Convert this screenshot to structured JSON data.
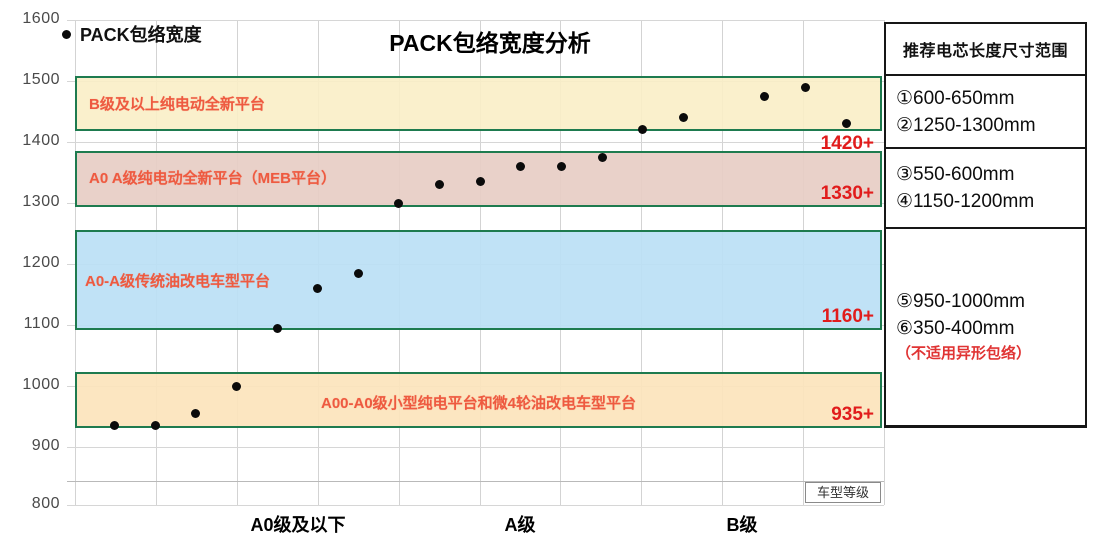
{
  "title": "PACK包络宽度分析",
  "legend": {
    "label": "PACK包络宽度"
  },
  "y_axis": {
    "ticks": [
      1600,
      1500,
      1400,
      1300,
      1200,
      1100,
      1000,
      900,
      800
    ]
  },
  "x_axis": {
    "categories": [
      "A0级及以下",
      "A级",
      "B级"
    ],
    "title": "车型等级"
  },
  "chart_data": {
    "type": "scatter",
    "series_name": "PACK包络宽度",
    "title": "PACK包络宽度分析",
    "xlabel": "车型等级",
    "ylabel": "PACK包络宽度",
    "ylim": [
      800,
      1600
    ],
    "grid": true,
    "legend_position": "top-left",
    "bands": [
      {
        "id": "b-class",
        "label": "B级及以上纯电动全新平台",
        "range": [
          1418,
          1508
        ],
        "min_label": "1420+",
        "min_label_outside": true,
        "fill": "rgba(250,238,198,0.9)"
      },
      {
        "id": "a0a-meb",
        "label": "A0 A级纯电动全新平台（MEB平台）",
        "range": [
          1293,
          1385
        ],
        "min_label": "1330+",
        "min_label_outside": false,
        "fill": "rgba(231,205,196,0.92)"
      },
      {
        "id": "a0a-retrofit",
        "label": "A0-A级传统油改电车型平台",
        "range": [
          1092,
          1256
        ],
        "min_label": "1160+",
        "min_label_outside": false,
        "fill": "rgba(187,224,245,0.92)"
      },
      {
        "id": "a00-small",
        "label": "A00-A0级小型纯电平台和微4轮油改电车型平台",
        "range": [
          931,
          1023
        ],
        "min_label": "935+",
        "min_label_outside": false,
        "fill": "rgba(252,228,188,0.92)"
      }
    ],
    "points": [
      {
        "slot": 0,
        "value": 935
      },
      {
        "slot": 1,
        "value": 935
      },
      {
        "slot": 2,
        "value": 955
      },
      {
        "slot": 3,
        "value": 1000
      },
      {
        "slot": 4,
        "value": 1095
      },
      {
        "slot": 5,
        "value": 1160
      },
      {
        "slot": 6,
        "value": 1185
      },
      {
        "slot": 7,
        "value": 1300
      },
      {
        "slot": 8,
        "value": 1330
      },
      {
        "slot": 9,
        "value": 1335
      },
      {
        "slot": 10,
        "value": 1360
      },
      {
        "slot": 11,
        "value": 1360
      },
      {
        "slot": 12,
        "value": 1375
      },
      {
        "slot": 13,
        "value": 1420
      },
      {
        "slot": 14,
        "value": 1440
      },
      {
        "slot": 16,
        "value": 1475
      },
      {
        "slot": 17,
        "value": 1490
      },
      {
        "slot": 18,
        "value": 1430
      }
    ],
    "annotation_color": "#e11c1c",
    "band_border_color": "#1e7b4f",
    "point_color": "#0b0b0b"
  },
  "panel": {
    "header": "推荐电芯长度尺寸范围",
    "rows": [
      {
        "lines": [
          "①600-650mm",
          "②1250-1300mm"
        ]
      },
      {
        "lines": [
          "③550-600mm",
          "④1150-1200mm"
        ]
      },
      {
        "lines": [
          "⑤950-1000mm",
          "⑥350-400mm"
        ],
        "note": "（不适用异形包络）"
      }
    ]
  }
}
